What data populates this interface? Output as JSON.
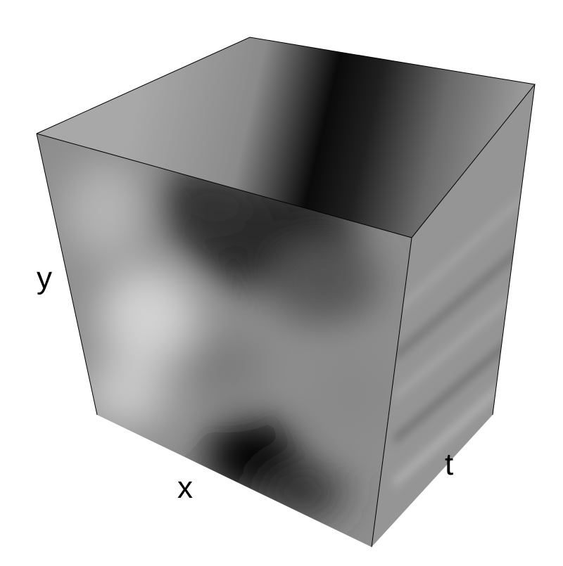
{
  "axes": {
    "x": "x",
    "y": "y",
    "t": "t"
  }
}
